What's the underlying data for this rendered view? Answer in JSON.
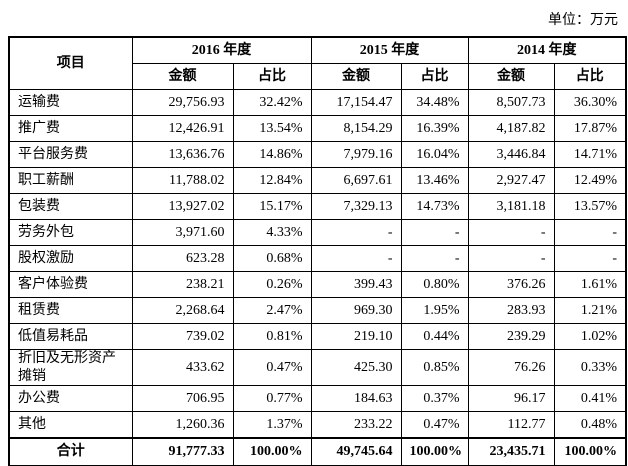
{
  "unit_label": "单位：万元",
  "table": {
    "item_header": "项目",
    "year_groups": [
      {
        "label": "2016 年度"
      },
      {
        "label": "2015 年度"
      },
      {
        "label": "2014 年度"
      }
    ],
    "sub_headers": {
      "amount": "金额",
      "ratio": "占比"
    },
    "rows": [
      {
        "item": "运输费",
        "cells": [
          "29,756.93",
          "32.42%",
          "17,154.47",
          "34.48%",
          "8,507.73",
          "36.30%"
        ]
      },
      {
        "item": "推广费",
        "cells": [
          "12,426.91",
          "13.54%",
          "8,154.29",
          "16.39%",
          "4,187.82",
          "17.87%"
        ]
      },
      {
        "item": "平台服务费",
        "cells": [
          "13,636.76",
          "14.86%",
          "7,979.16",
          "16.04%",
          "3,446.84",
          "14.71%"
        ]
      },
      {
        "item": "职工薪酬",
        "cells": [
          "11,788.02",
          "12.84%",
          "6,697.61",
          "13.46%",
          "2,927.47",
          "12.49%"
        ]
      },
      {
        "item": "包装费",
        "cells": [
          "13,927.02",
          "15.17%",
          "7,329.13",
          "14.73%",
          "3,181.18",
          "13.57%"
        ]
      },
      {
        "item": "劳务外包",
        "cells": [
          "3,971.60",
          "4.33%",
          "-",
          "-",
          "-",
          "-"
        ]
      },
      {
        "item": "股权激励",
        "cells": [
          "623.28",
          "0.68%",
          "-",
          "-",
          "-",
          "-"
        ]
      },
      {
        "item": "客户体验费",
        "cells": [
          "238.21",
          "0.26%",
          "399.43",
          "0.80%",
          "376.26",
          "1.61%"
        ]
      },
      {
        "item": "租赁费",
        "cells": [
          "2,268.64",
          "2.47%",
          "969.30",
          "1.95%",
          "283.93",
          "1.21%"
        ]
      },
      {
        "item": "低值易耗品",
        "cells": [
          "739.02",
          "0.81%",
          "219.10",
          "0.44%",
          "239.29",
          "1.02%"
        ]
      },
      {
        "item": "折旧及无形资产摊销",
        "cells": [
          "433.62",
          "0.47%",
          "425.30",
          "0.85%",
          "76.26",
          "0.33%"
        ]
      },
      {
        "item": "办公费",
        "cells": [
          "706.95",
          "0.77%",
          "184.63",
          "0.37%",
          "96.17",
          "0.41%"
        ]
      },
      {
        "item": "其他",
        "cells": [
          "1,260.36",
          "1.37%",
          "233.22",
          "0.47%",
          "112.77",
          "0.48%"
        ]
      }
    ],
    "total_row": {
      "item": "合计",
      "cells": [
        "91,777.33",
        "100.00%",
        "49,745.64",
        "100.00%",
        "23,435.71",
        "100.00%"
      ]
    }
  }
}
